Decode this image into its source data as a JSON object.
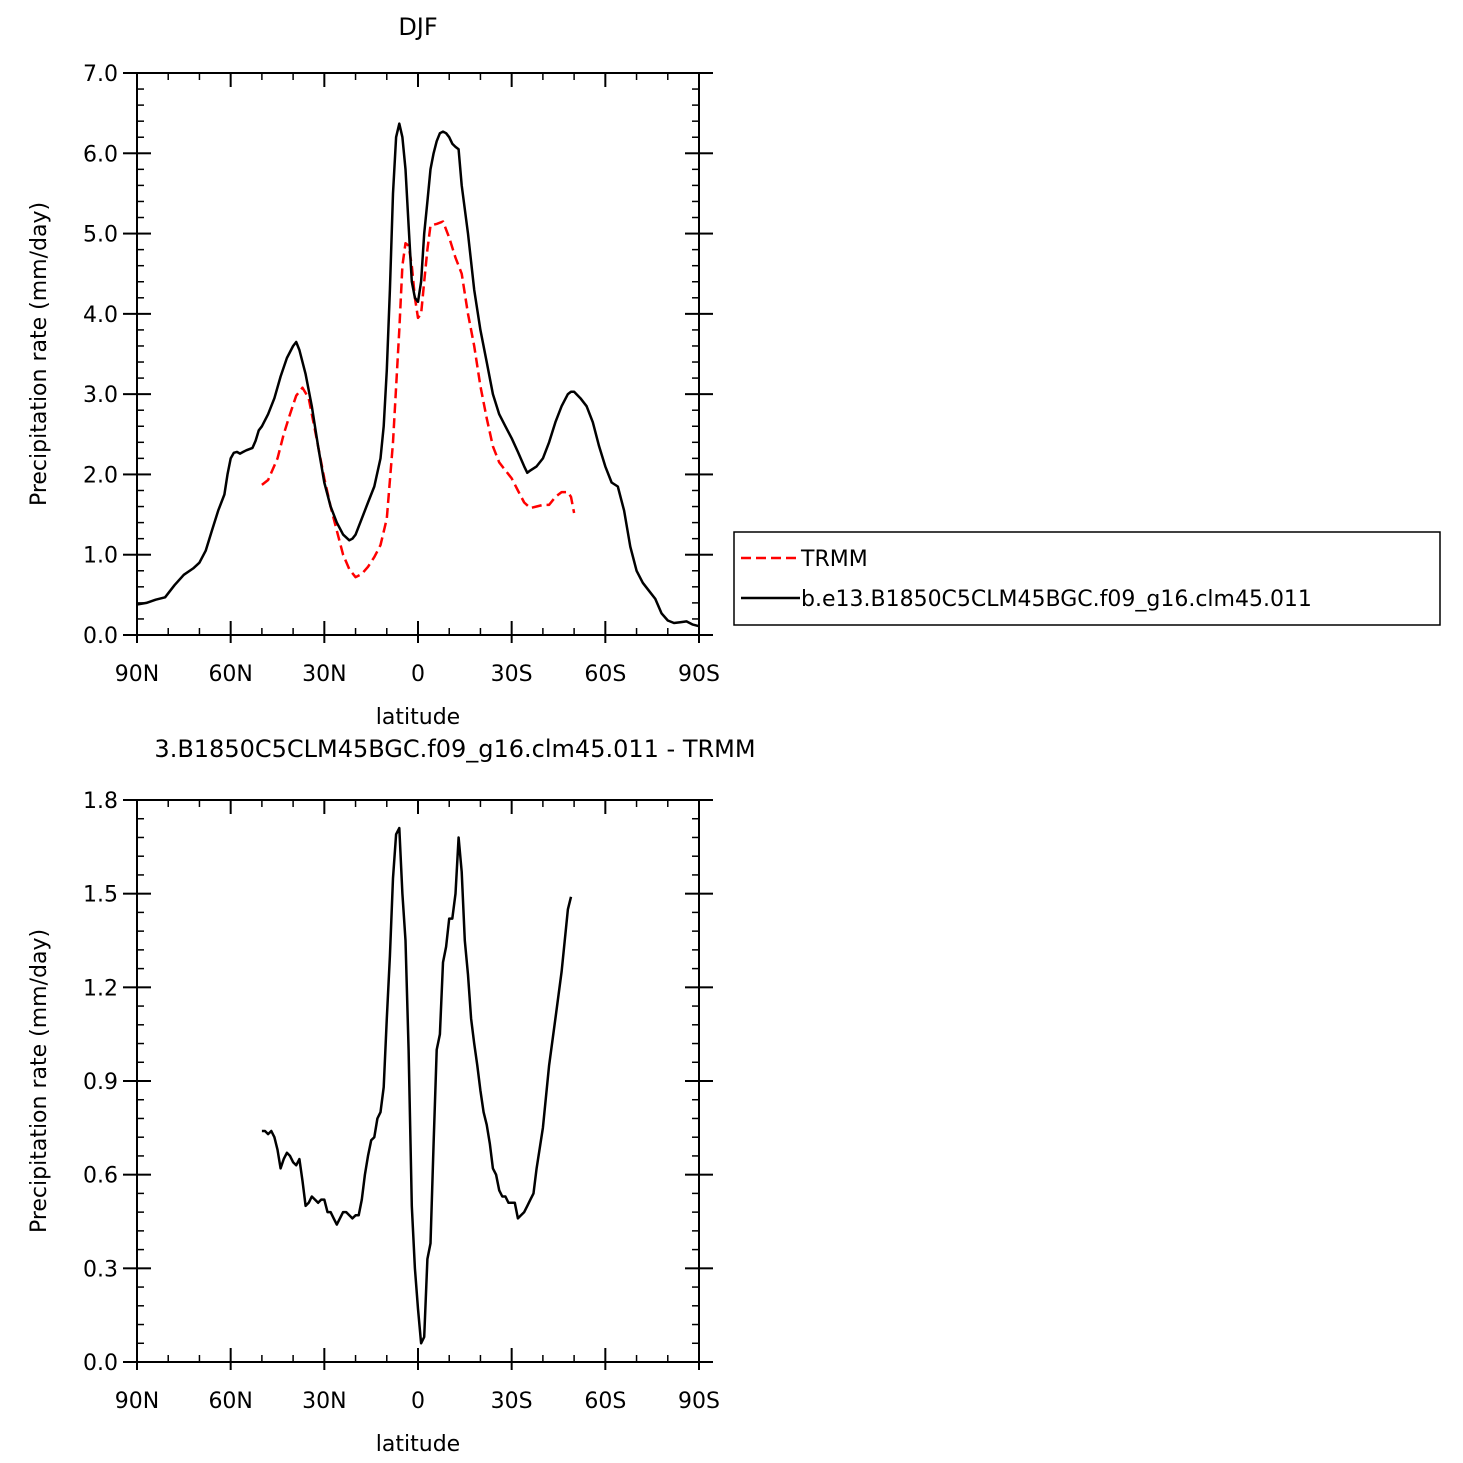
{
  "chart_data": [
    {
      "type": "line",
      "title": "DJF",
      "xlabel": "latitude",
      "ylabel": "Precipitation rate (mm/day)",
      "xlim": [
        90,
        -90
      ],
      "ylim": [
        0,
        7
      ],
      "x_ticks": [
        90,
        60,
        30,
        0,
        -30,
        -60,
        -90
      ],
      "x_tick_labels": [
        "90N",
        "60N",
        "30N",
        "0",
        "30S",
        "60S",
        "90S"
      ],
      "y_ticks": [
        0,
        1,
        2,
        3,
        4,
        5,
        6,
        7
      ],
      "y_tick_labels": [
        "0.0",
        "1.0",
        "2.0",
        "3.0",
        "4.0",
        "5.0",
        "6.0",
        "7.0"
      ],
      "legend_position": "right",
      "series": [
        {
          "name": "TRMM",
          "color": "#ff0000",
          "dash": "dashed",
          "points": [
            [
              50,
              1.87
            ],
            [
              48,
              1.93
            ],
            [
              45,
              2.2
            ],
            [
              43,
              2.5
            ],
            [
              41,
              2.75
            ],
            [
              39,
              2.98
            ],
            [
              37,
              3.08
            ],
            [
              35,
              2.95
            ],
            [
              33,
              2.55
            ],
            [
              30,
              1.95
            ],
            [
              28,
              1.6
            ],
            [
              26,
              1.3
            ],
            [
              24,
              1.0
            ],
            [
              22,
              0.82
            ],
            [
              20,
              0.72
            ],
            [
              18,
              0.76
            ],
            [
              16,
              0.85
            ],
            [
              14,
              0.97
            ],
            [
              12,
              1.12
            ],
            [
              10,
              1.45
            ],
            [
              8,
              2.4
            ],
            [
              6,
              3.8
            ],
            [
              5,
              4.6
            ],
            [
              4,
              4.88
            ],
            [
              3,
              4.85
            ],
            [
              2,
              4.6
            ],
            [
              1,
              4.2
            ],
            [
              0,
              3.95
            ],
            [
              -1,
              4.0
            ],
            [
              -2,
              4.4
            ],
            [
              -3,
              4.8
            ],
            [
              -4,
              5.1
            ],
            [
              -6,
              5.12
            ],
            [
              -8,
              5.15
            ],
            [
              -10,
              4.95
            ],
            [
              -12,
              4.7
            ],
            [
              -14,
              4.5
            ],
            [
              -16,
              4.0
            ],
            [
              -18,
              3.6
            ],
            [
              -20,
              3.1
            ],
            [
              -22,
              2.7
            ],
            [
              -24,
              2.35
            ],
            [
              -26,
              2.15
            ],
            [
              -28,
              2.05
            ],
            [
              -30,
              1.95
            ],
            [
              -32,
              1.8
            ],
            [
              -34,
              1.65
            ],
            [
              -36,
              1.58
            ],
            [
              -38,
              1.6
            ],
            [
              -40,
              1.62
            ],
            [
              -42,
              1.62
            ],
            [
              -44,
              1.72
            ],
            [
              -46,
              1.78
            ],
            [
              -48,
              1.78
            ],
            [
              -49,
              1.72
            ],
            [
              -50,
              1.52
            ]
          ]
        },
        {
          "name": "b.e13.B1850C5CLM45BGC.f09_g16.clm45.011",
          "color": "#000000",
          "dash": "solid",
          "points": [
            [
              90,
              0.38
            ],
            [
              87,
              0.4
            ],
            [
              84,
              0.44
            ],
            [
              81,
              0.47
            ],
            [
              78,
              0.62
            ],
            [
              75,
              0.75
            ],
            [
              72,
              0.83
            ],
            [
              70,
              0.9
            ],
            [
              68,
              1.05
            ],
            [
              66,
              1.3
            ],
            [
              64,
              1.55
            ],
            [
              62,
              1.75
            ],
            [
              61,
              2.0
            ],
            [
              60,
              2.2
            ],
            [
              59,
              2.27
            ],
            [
              58,
              2.28
            ],
            [
              57,
              2.26
            ],
            [
              56,
              2.28
            ],
            [
              55,
              2.3
            ],
            [
              53,
              2.33
            ],
            [
              52,
              2.42
            ],
            [
              51,
              2.55
            ],
            [
              50,
              2.6
            ],
            [
              48,
              2.75
            ],
            [
              46,
              2.95
            ],
            [
              44,
              3.22
            ],
            [
              42,
              3.45
            ],
            [
              40,
              3.6
            ],
            [
              39,
              3.65
            ],
            [
              38,
              3.55
            ],
            [
              36,
              3.25
            ],
            [
              34,
              2.85
            ],
            [
              32,
              2.35
            ],
            [
              30,
              1.9
            ],
            [
              28,
              1.6
            ],
            [
              26,
              1.4
            ],
            [
              24,
              1.25
            ],
            [
              22,
              1.18
            ],
            [
              21,
              1.2
            ],
            [
              20,
              1.25
            ],
            [
              18,
              1.45
            ],
            [
              16,
              1.65
            ],
            [
              14,
              1.85
            ],
            [
              12,
              2.2
            ],
            [
              11,
              2.6
            ],
            [
              10,
              3.3
            ],
            [
              9,
              4.3
            ],
            [
              8,
              5.5
            ],
            [
              7,
              6.2
            ],
            [
              6,
              6.37
            ],
            [
              5,
              6.2
            ],
            [
              4,
              5.8
            ],
            [
              3,
              5.1
            ],
            [
              2,
              4.4
            ],
            [
              1,
              4.2
            ],
            [
              0,
              4.15
            ],
            [
              -1,
              4.4
            ],
            [
              -2,
              5.0
            ],
            [
              -3,
              5.4
            ],
            [
              -4,
              5.8
            ],
            [
              -5,
              6.0
            ],
            [
              -6,
              6.15
            ],
            [
              -7,
              6.25
            ],
            [
              -8,
              6.27
            ],
            [
              -9,
              6.25
            ],
            [
              -10,
              6.2
            ],
            [
              -11,
              6.12
            ],
            [
              -12,
              6.08
            ],
            [
              -13,
              6.05
            ],
            [
              -14,
              5.6
            ],
            [
              -16,
              5.0
            ],
            [
              -18,
              4.3
            ],
            [
              -20,
              3.8
            ],
            [
              -22,
              3.4
            ],
            [
              -24,
              3.0
            ],
            [
              -26,
              2.75
            ],
            [
              -28,
              2.6
            ],
            [
              -30,
              2.45
            ],
            [
              -32,
              2.28
            ],
            [
              -34,
              2.1
            ],
            [
              -35,
              2.02
            ],
            [
              -36,
              2.05
            ],
            [
              -38,
              2.1
            ],
            [
              -40,
              2.2
            ],
            [
              -42,
              2.4
            ],
            [
              -44,
              2.65
            ],
            [
              -46,
              2.85
            ],
            [
              -48,
              3.0
            ],
            [
              -49,
              3.03
            ],
            [
              -50,
              3.03
            ],
            [
              -52,
              2.95
            ],
            [
              -54,
              2.85
            ],
            [
              -56,
              2.65
            ],
            [
              -58,
              2.35
            ],
            [
              -60,
              2.1
            ],
            [
              -62,
              1.9
            ],
            [
              -64,
              1.85
            ],
            [
              -66,
              1.55
            ],
            [
              -68,
              1.1
            ],
            [
              -70,
              0.8
            ],
            [
              -72,
              0.65
            ],
            [
              -74,
              0.55
            ],
            [
              -76,
              0.45
            ],
            [
              -78,
              0.27
            ],
            [
              -80,
              0.18
            ],
            [
              -82,
              0.15
            ],
            [
              -84,
              0.16
            ],
            [
              -86,
              0.17
            ],
            [
              -88,
              0.13
            ],
            [
              -90,
              0.11
            ]
          ]
        }
      ]
    },
    {
      "type": "line",
      "title": "3.B1850C5CLM45BGC.f09_g16.clm45.011 - TRMM",
      "xlabel": "latitude",
      "ylabel": "Precipitation rate (mm/day)",
      "xlim": [
        90,
        -90
      ],
      "ylim": [
        0,
        1.8
      ],
      "x_ticks": [
        90,
        60,
        30,
        0,
        -30,
        -60,
        -90
      ],
      "x_tick_labels": [
        "90N",
        "60N",
        "30N",
        "0",
        "30S",
        "60S",
        "90S"
      ],
      "y_ticks": [
        0,
        0.3,
        0.6,
        0.9,
        1.2,
        1.5,
        1.8
      ],
      "y_tick_labels": [
        "0.0",
        "0.3",
        "0.6",
        "0.9",
        "1.2",
        "1.5",
        "1.8"
      ],
      "series": [
        {
          "name": "",
          "color": "#000000",
          "dash": "solid",
          "points": [
            [
              50,
              0.74
            ],
            [
              49,
              0.74
            ],
            [
              48,
              0.73
            ],
            [
              47,
              0.74
            ],
            [
              46,
              0.72
            ],
            [
              45,
              0.68
            ],
            [
              44,
              0.62
            ],
            [
              43,
              0.65
            ],
            [
              42,
              0.67
            ],
            [
              41,
              0.66
            ],
            [
              40,
              0.64
            ],
            [
              39,
              0.63
            ],
            [
              38,
              0.65
            ],
            [
              37,
              0.58
            ],
            [
              36,
              0.5
            ],
            [
              35,
              0.51
            ],
            [
              34,
              0.53
            ],
            [
              33,
              0.52
            ],
            [
              32,
              0.51
            ],
            [
              31,
              0.52
            ],
            [
              30,
              0.52
            ],
            [
              29,
              0.48
            ],
            [
              28,
              0.48
            ],
            [
              27,
              0.46
            ],
            [
              26,
              0.44
            ],
            [
              25,
              0.46
            ],
            [
              24,
              0.48
            ],
            [
              23,
              0.48
            ],
            [
              22,
              0.47
            ],
            [
              21,
              0.46
            ],
            [
              20,
              0.47
            ],
            [
              19,
              0.47
            ],
            [
              18,
              0.52
            ],
            [
              17,
              0.6
            ],
            [
              16,
              0.66
            ],
            [
              15,
              0.71
            ],
            [
              14,
              0.72
            ],
            [
              13,
              0.78
            ],
            [
              12,
              0.8
            ],
            [
              11,
              0.88
            ],
            [
              10,
              1.1
            ],
            [
              9,
              1.3
            ],
            [
              8,
              1.55
            ],
            [
              7,
              1.69
            ],
            [
              6,
              1.71
            ],
            [
              5,
              1.5
            ],
            [
              4,
              1.35
            ],
            [
              3,
              1.0
            ],
            [
              2,
              0.5
            ],
            [
              1,
              0.3
            ],
            [
              0,
              0.17
            ],
            [
              -1,
              0.06
            ],
            [
              -2,
              0.08
            ],
            [
              -3,
              0.33
            ],
            [
              -4,
              0.38
            ],
            [
              -5,
              0.7
            ],
            [
              -6,
              1.0
            ],
            [
              -7,
              1.05
            ],
            [
              -8,
              1.28
            ],
            [
              -9,
              1.33
            ],
            [
              -10,
              1.42
            ],
            [
              -11,
              1.42
            ],
            [
              -12,
              1.5
            ],
            [
              -13,
              1.68
            ],
            [
              -14,
              1.57
            ],
            [
              -15,
              1.35
            ],
            [
              -16,
              1.24
            ],
            [
              -17,
              1.1
            ],
            [
              -18,
              1.02
            ],
            [
              -19,
              0.95
            ],
            [
              -20,
              0.87
            ],
            [
              -21,
              0.8
            ],
            [
              -22,
              0.76
            ],
            [
              -23,
              0.7
            ],
            [
              -24,
              0.62
            ],
            [
              -25,
              0.6
            ],
            [
              -26,
              0.55
            ],
            [
              -27,
              0.53
            ],
            [
              -28,
              0.53
            ],
            [
              -29,
              0.51
            ],
            [
              -30,
              0.51
            ],
            [
              -31,
              0.51
            ],
            [
              -32,
              0.46
            ],
            [
              -33,
              0.47
            ],
            [
              -34,
              0.48
            ],
            [
              -35,
              0.5
            ],
            [
              -36,
              0.52
            ],
            [
              -37,
              0.54
            ],
            [
              -38,
              0.62
            ],
            [
              -40,
              0.75
            ],
            [
              -42,
              0.95
            ],
            [
              -44,
              1.1
            ],
            [
              -46,
              1.25
            ],
            [
              -48,
              1.45
            ],
            [
              -49,
              1.49
            ]
          ]
        }
      ]
    }
  ]
}
